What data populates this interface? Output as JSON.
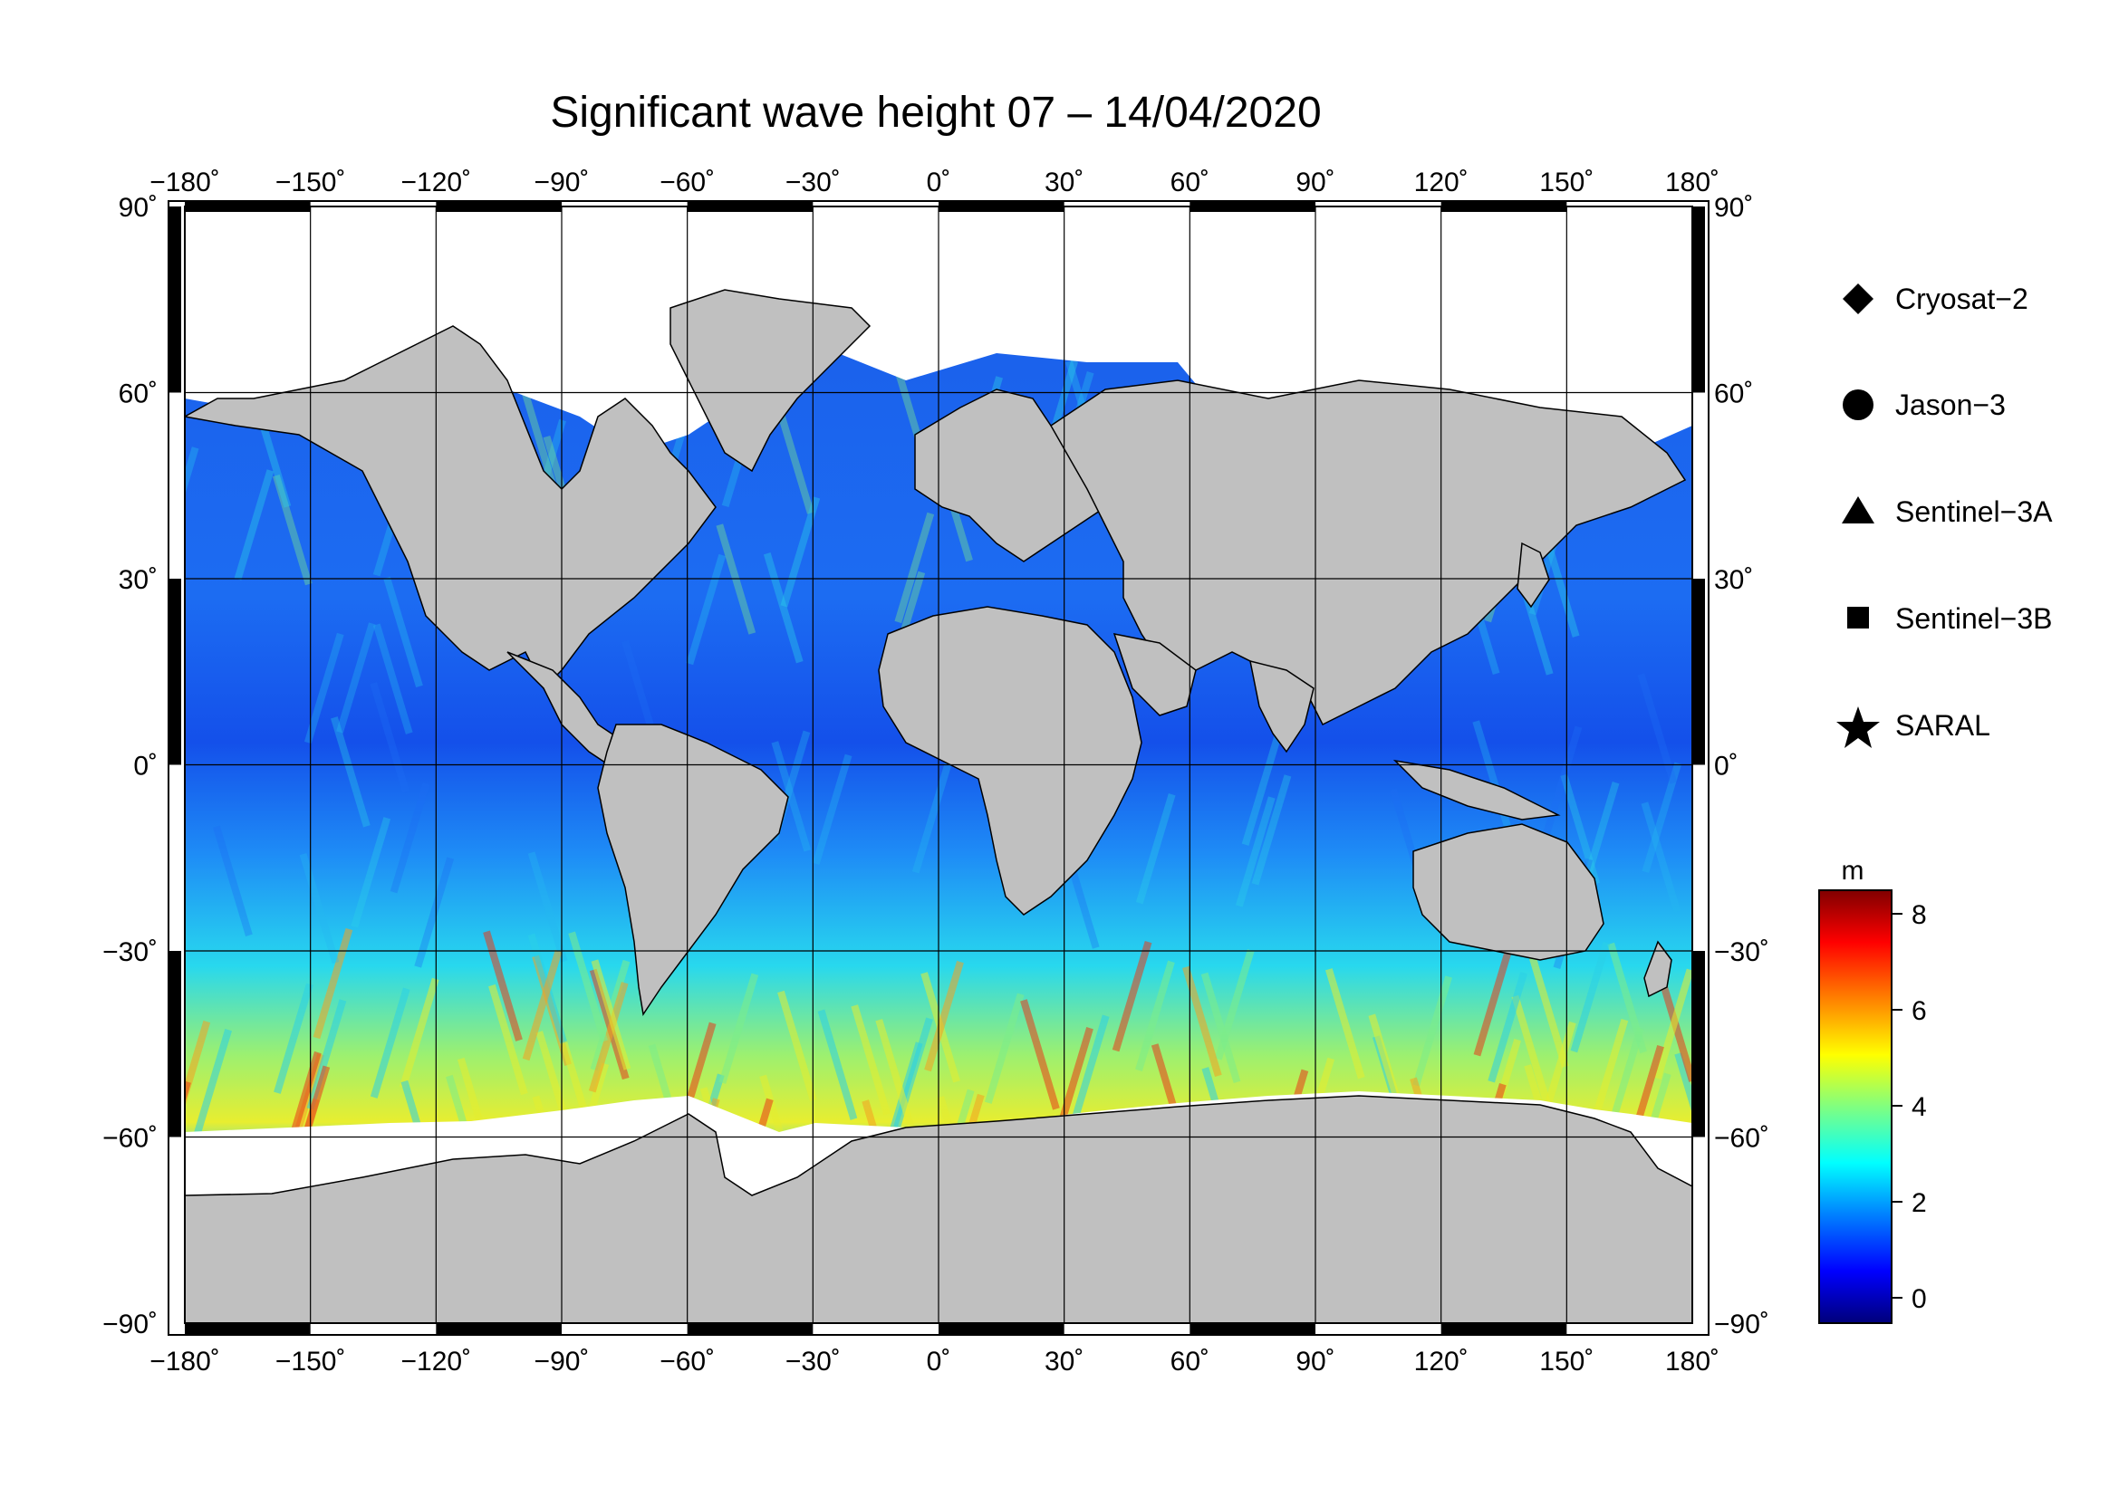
{
  "title": "Significant wave height 07 – 14/04/2020",
  "axes": {
    "lon_ticks": [
      "−180˚",
      "−150˚",
      "−120˚",
      "−90˚",
      "−60˚",
      "−30˚",
      "0˚",
      "30˚",
      "60˚",
      "90˚",
      "120˚",
      "150˚",
      "180˚"
    ],
    "lat_ticks": [
      "90˚",
      "60˚",
      "30˚",
      "0˚",
      "−30˚",
      "−60˚",
      "−90˚"
    ]
  },
  "legend": [
    {
      "label": "Cryosat−2",
      "icon": "diamond-icon"
    },
    {
      "label": "Jason−3",
      "icon": "circle-icon"
    },
    {
      "label": "Sentinel−3A",
      "icon": "triangle-icon"
    },
    {
      "label": "Sentinel−3B",
      "icon": "square-icon"
    },
    {
      "label": "SARAL",
      "icon": "star-icon"
    }
  ],
  "colorbar": {
    "unit": "m",
    "tick_labels": [
      "8",
      "6",
      "4",
      "2",
      "0"
    ],
    "colors": [
      "#00007a",
      "#0000ff",
      "#0080ff",
      "#00ffff",
      "#80ff80",
      "#ffff00",
      "#ff8000",
      "#ff0000",
      "#800000"
    ]
  },
  "colors": {
    "land": "#c0c0c0",
    "ice": "#ffffff",
    "ocean_base": "#1e64f0"
  }
}
